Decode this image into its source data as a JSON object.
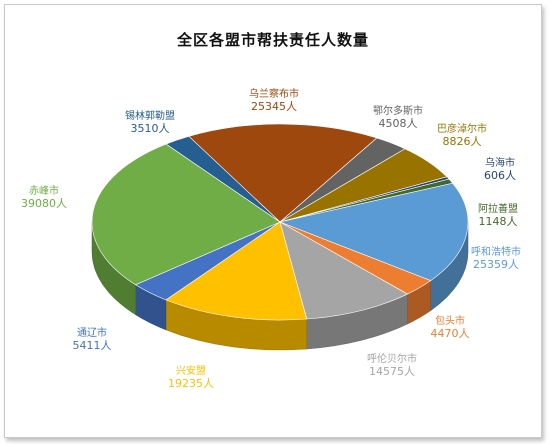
{
  "chart_data": {
    "type": "pie",
    "title": "全区各盟市帮扶责任人数量",
    "slices": [
      {
        "label": "乌兰察布市",
        "value": 25345,
        "display": "25345人",
        "color": "#9E480E"
      },
      {
        "label": "鄂尔多斯市",
        "value": 4508,
        "display": "4508人",
        "color": "#636363"
      },
      {
        "label": "巴彦淖尔市",
        "value": 8826,
        "display": "8826人",
        "color": "#997300"
      },
      {
        "label": "乌海市",
        "value": 606,
        "display": "606人",
        "color": "#264478"
      },
      {
        "label": "阿拉善盟",
        "value": 1148,
        "display": "1148人",
        "color": "#43682B"
      },
      {
        "label": "呼和浩特市",
        "value": 25359,
        "display": "25359人",
        "color": "#5B9BD5"
      },
      {
        "label": "包头市",
        "value": 4470,
        "display": "4470人",
        "color": "#ED7D31"
      },
      {
        "label": "呼伦贝尔市",
        "value": 14575,
        "display": "14575人",
        "color": "#A5A5A5"
      },
      {
        "label": "兴安盟",
        "value": 19235,
        "display": "19235人",
        "color": "#FFC000"
      },
      {
        "label": "通辽市",
        "value": 5411,
        "display": "5411人",
        "color": "#4472C4"
      },
      {
        "label": "赤峰市",
        "value": 39080,
        "display": "39080人",
        "color": "#70AD47"
      },
      {
        "label": "锡林郭勒盟",
        "value": 3510,
        "display": "3510人",
        "color": "#255E91"
      }
    ],
    "legend": "none",
    "style": "3d"
  }
}
